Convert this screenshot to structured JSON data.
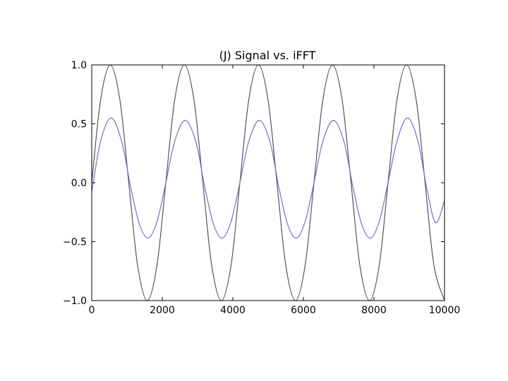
{
  "chart_data": {
    "type": "line",
    "title": "(J) Signal vs. iFFT",
    "xlabel": "",
    "ylabel": "",
    "xlim": [
      0,
      10000
    ],
    "ylim": [
      -1.0,
      1.0
    ],
    "x_ticks": [
      0,
      2000,
      4000,
      6000,
      8000,
      10000
    ],
    "x_tick_labels": [
      "0",
      "2000",
      "4000",
      "6000",
      "8000",
      "10000"
    ],
    "y_ticks": [
      -1.0,
      -0.5,
      0.0,
      0.5,
      1.0
    ],
    "y_tick_labels": [
      "−1.0",
      "−0.5",
      "0.0",
      "0.5",
      "1.0"
    ],
    "grid": false,
    "legend": "none",
    "series": [
      {
        "color": "#555555",
        "x": [
          0,
          250,
          525,
          800,
          1050,
          1300,
          1575,
          1850,
          2100,
          2350,
          2625,
          2900,
          3150,
          3400,
          3675,
          3950,
          4200,
          4450,
          4725,
          5000,
          5250,
          5500,
          5775,
          6050,
          6300,
          6550,
          6825,
          7100,
          7350,
          7600,
          7875,
          8150,
          8400,
          8650,
          8925,
          9200,
          9450,
          9700,
          10000
        ],
        "y": [
          0.0,
          0.7,
          1.0,
          0.7,
          0.0,
          -0.7,
          -1.0,
          -0.7,
          0.0,
          0.7,
          1.0,
          0.7,
          0.0,
          -0.7,
          -1.0,
          -0.7,
          0.0,
          0.7,
          1.0,
          0.7,
          0.0,
          -0.7,
          -1.0,
          -0.7,
          0.0,
          0.7,
          1.0,
          0.7,
          0.0,
          -0.7,
          -1.0,
          -0.7,
          0.0,
          0.7,
          1.0,
          0.7,
          0.0,
          -0.7,
          -1.0
        ]
      },
      {
        "color": "#7070d0",
        "x": [
          0,
          250,
          550,
          850,
          1100,
          1350,
          1600,
          1850,
          2100,
          2350,
          2650,
          2950,
          3200,
          3450,
          3700,
          3950,
          4200,
          4450,
          4750,
          5050,
          5300,
          5550,
          5800,
          6050,
          6300,
          6550,
          6850,
          7150,
          7400,
          7650,
          7900,
          8150,
          8400,
          8650,
          8950,
          9250,
          9500,
          9750,
          10000
        ],
        "y": [
          -0.08,
          0.35,
          0.55,
          0.35,
          -0.03,
          -0.35,
          -0.47,
          -0.33,
          0.0,
          0.35,
          0.53,
          0.35,
          -0.03,
          -0.35,
          -0.47,
          -0.33,
          0.0,
          0.35,
          0.53,
          0.35,
          -0.03,
          -0.35,
          -0.47,
          -0.33,
          0.0,
          0.35,
          0.53,
          0.35,
          -0.03,
          -0.35,
          -0.47,
          -0.33,
          0.0,
          0.35,
          0.55,
          0.35,
          -0.05,
          -0.34,
          -0.15
        ]
      }
    ]
  }
}
